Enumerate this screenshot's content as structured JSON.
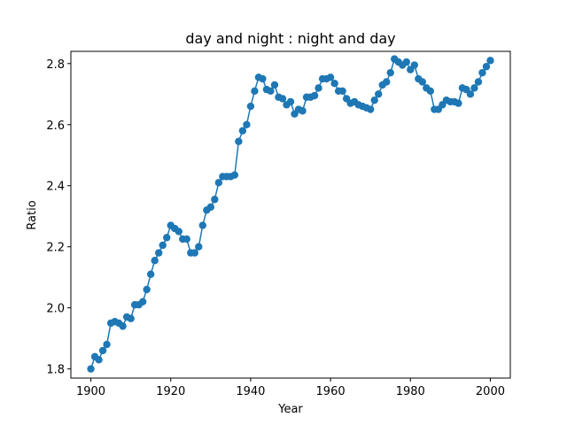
{
  "chart_data": {
    "type": "line",
    "title": "day and night : night and day",
    "xlabel": "Year",
    "ylabel": "Ratio",
    "xlim": [
      1895,
      2005
    ],
    "ylim": [
      1.77,
      2.84
    ],
    "xticks": [
      1900,
      1920,
      1940,
      1960,
      1980,
      2000
    ],
    "yticks": [
      1.8,
      2.0,
      2.2,
      2.4,
      2.6,
      2.8
    ],
    "ytick_labels": [
      "1.8",
      "2.0",
      "2.2",
      "2.4",
      "2.6",
      "2.8"
    ],
    "grid": false,
    "markers": true,
    "colors": {
      "series": "#1f77b4"
    },
    "series": [
      {
        "x": [
          1900,
          1901,
          1902,
          1903,
          1904,
          1905,
          1906,
          1907,
          1908,
          1909,
          1910,
          1911,
          1912,
          1913,
          1914,
          1915,
          1916,
          1917,
          1918,
          1919,
          1920,
          1921,
          1922,
          1923,
          1924,
          1925,
          1926,
          1927,
          1928,
          1929,
          1930,
          1931,
          1932,
          1933,
          1934,
          1935,
          1936,
          1937,
          1938,
          1939,
          1940,
          1941,
          1942,
          1943,
          1944,
          1945,
          1946,
          1947,
          1948,
          1949,
          1950,
          1951,
          1952,
          1953,
          1954,
          1955,
          1956,
          1957,
          1958,
          1959,
          1960,
          1961,
          1962,
          1963,
          1964,
          1965,
          1966,
          1967,
          1968,
          1969,
          1970,
          1971,
          1972,
          1973,
          1974,
          1975,
          1976,
          1977,
          1978,
          1979,
          1980,
          1981,
          1982,
          1983,
          1984,
          1985,
          1986,
          1987,
          1988,
          1989,
          1990,
          1991,
          1992,
          1993,
          1994,
          1995,
          1996,
          1997,
          1998,
          1999,
          2000
        ],
        "values": [
          1.8,
          1.84,
          1.83,
          1.86,
          1.88,
          1.95,
          1.955,
          1.95,
          1.94,
          1.97,
          1.965,
          2.01,
          2.01,
          2.02,
          2.06,
          2.11,
          2.155,
          2.18,
          2.205,
          2.23,
          2.27,
          2.26,
          2.25,
          2.225,
          2.225,
          2.18,
          2.18,
          2.2,
          2.27,
          2.32,
          2.33,
          2.355,
          2.41,
          2.43,
          2.43,
          2.43,
          2.435,
          2.545,
          2.58,
          2.6,
          2.66,
          2.71,
          2.755,
          2.75,
          2.715,
          2.71,
          2.73,
          2.69,
          2.685,
          2.665,
          2.675,
          2.635,
          2.65,
          2.645,
          2.69,
          2.69,
          2.695,
          2.72,
          2.75,
          2.75,
          2.755,
          2.735,
          2.71,
          2.71,
          2.685,
          2.67,
          2.675,
          2.665,
          2.66,
          2.655,
          2.65,
          2.68,
          2.7,
          2.73,
          2.74,
          2.77,
          2.815,
          2.805,
          2.795,
          2.805,
          2.78,
          2.795,
          2.75,
          2.74,
          2.72,
          2.71,
          2.65,
          2.65,
          2.665,
          2.68,
          2.675,
          2.675,
          2.67,
          2.72,
          2.715,
          2.7,
          2.72,
          2.74,
          2.77,
          2.79,
          2.81
        ]
      }
    ]
  }
}
